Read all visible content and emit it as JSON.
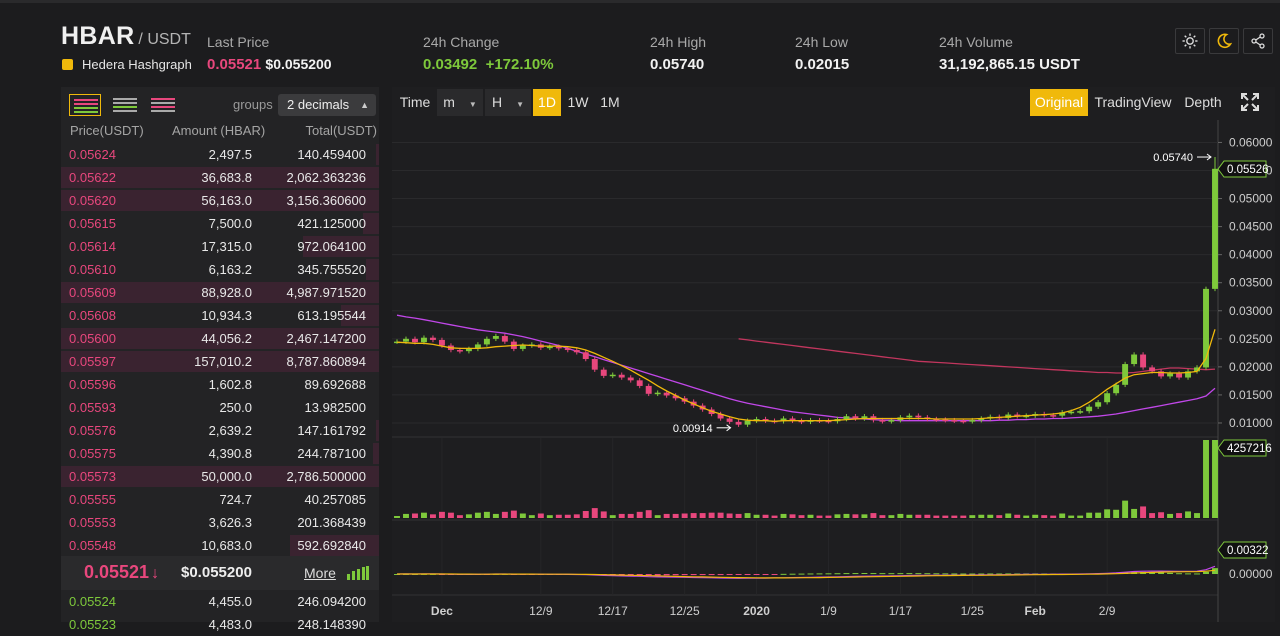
{
  "header": {
    "symbol": "HBAR",
    "quote": "/ USDT",
    "name": "Hedera Hashgraph",
    "last_price_label": "Last Price",
    "last_price": "0.05521",
    "last_price_usd": "$0.055200",
    "change_label": "24h Change",
    "change_value": "0.03492",
    "change_percent": "+172.10%",
    "high_label": "24h High",
    "high_value": "0.05740",
    "low_label": "24h Low",
    "low_value": "0.02015",
    "volume_label": "24h Volume",
    "volume_value": "31,192,865.15 USDT",
    "icons": [
      "sun-icon",
      "moon-icon",
      "share-icon"
    ]
  },
  "orderbook": {
    "groups_label": "groups",
    "groups_value": "2 decimals",
    "headers": [
      "Price(USDT)",
      "Amount (HBAR)",
      "Total(USDT)"
    ],
    "asks": [
      {
        "price": "0.05624",
        "amount": "2,497.5",
        "total": "140.459400",
        "depth": 0.01
      },
      {
        "price": "0.05622",
        "amount": "36,683.8",
        "total": "2,062.363236",
        "depth": 1.0
      },
      {
        "price": "0.05620",
        "amount": "56,163.0",
        "total": "3,156.360600",
        "depth": 1.0
      },
      {
        "price": "0.05615",
        "amount": "7,500.0",
        "total": "421.125000",
        "depth": 0.05
      },
      {
        "price": "0.05614",
        "amount": "17,315.0",
        "total": "972.064100",
        "depth": 0.24
      },
      {
        "price": "0.05610",
        "amount": "6,163.2",
        "total": "345.755520",
        "depth": 0.04
      },
      {
        "price": "0.05609",
        "amount": "88,928.0",
        "total": "4,987.971520",
        "depth": 1.0
      },
      {
        "price": "0.05608",
        "amount": "10,934.3",
        "total": "613.195544",
        "depth": 0.12
      },
      {
        "price": "0.05600",
        "amount": "44,056.2",
        "total": "2,467.147200",
        "depth": 1.0
      },
      {
        "price": "0.05597",
        "amount": "157,010.2",
        "total": "8,787.860894",
        "depth": 1.0
      },
      {
        "price": "0.05596",
        "amount": "1,602.8",
        "total": "89.692688",
        "depth": 0.0
      },
      {
        "price": "0.05593",
        "amount": "250.0",
        "total": "13.982500",
        "depth": 0.0
      },
      {
        "price": "0.05576",
        "amount": "2,639.2",
        "total": "147.161792",
        "depth": 0.01
      },
      {
        "price": "0.05575",
        "amount": "4,390.8",
        "total": "244.787100",
        "depth": 0.02
      },
      {
        "price": "0.05573",
        "amount": "50,000.0",
        "total": "2,786.500000",
        "depth": 1.0
      },
      {
        "price": "0.05555",
        "amount": "724.7",
        "total": "40.257085",
        "depth": 0.0
      },
      {
        "price": "0.05553",
        "amount": "3,626.3",
        "total": "201.368439",
        "depth": 0.0
      },
      {
        "price": "0.05548",
        "amount": "10,683.0",
        "total": "592.692840",
        "depth": 0.28
      }
    ],
    "last_price": "0.05521",
    "last_arrow": "↓",
    "last_price_usd": "$0.055200",
    "more_label": "More",
    "bids": [
      {
        "price": "0.05524",
        "amount": "4,455.0",
        "total": "246.094200",
        "depth": 0.0
      },
      {
        "price": "0.05523",
        "amount": "4,483.0",
        "total": "248.148390",
        "depth": 0.0
      }
    ]
  },
  "toolbar": {
    "time_label": "Time",
    "minute_label": "m",
    "hour_label": "H",
    "intervals": [
      "1D",
      "1W",
      "1M"
    ],
    "active_interval": "1D",
    "views": [
      "Original",
      "TradingView",
      "Depth"
    ],
    "active_view": "Original"
  },
  "chart_data": {
    "type": "candlestick",
    "interval": "1D",
    "x_tick_labels": [
      "Dec",
      "12/9",
      "12/17",
      "12/25",
      "2020",
      "1/9",
      "1/17",
      "1/25",
      "Feb",
      "2/9"
    ],
    "price_axis": {
      "ticks": [
        "0.06000",
        "0.05500",
        "0.05000",
        "0.04500",
        "0.04000",
        "0.03500",
        "0.03000",
        "0.02500",
        "0.02000",
        "0.01500",
        "0.01000"
      ],
      "range": [
        0.0075,
        0.064
      ]
    },
    "annotations": {
      "high": "0.05740",
      "low": "0.00914",
      "last": "0.05526"
    },
    "volume_last_label": "4257216",
    "macd_last_label": "0.00322",
    "macd_zero_label": "0.00000",
    "close": [
      0.0245,
      0.025,
      0.0244,
      0.0252,
      0.0248,
      0.0238,
      0.023,
      0.0228,
      0.0232,
      0.024,
      0.025,
      0.0255,
      0.0245,
      0.0232,
      0.0238,
      0.024,
      0.0234,
      0.0236,
      0.0233,
      0.023,
      0.0226,
      0.0214,
      0.0195,
      0.0184,
      0.0186,
      0.0181,
      0.0176,
      0.0166,
      0.0152,
      0.0154,
      0.0149,
      0.0144,
      0.0138,
      0.0131,
      0.0124,
      0.0116,
      0.0108,
      0.0102,
      0.0097,
      0.0104,
      0.0107,
      0.0104,
      0.0103,
      0.0108,
      0.0104,
      0.0102,
      0.0105,
      0.0104,
      0.0103,
      0.0107,
      0.0112,
      0.0108,
      0.0112,
      0.0105,
      0.0103,
      0.0105,
      0.011,
      0.0113,
      0.011,
      0.0107,
      0.0106,
      0.0105,
      0.0104,
      0.0103,
      0.0105,
      0.0108,
      0.0111,
      0.0109,
      0.0115,
      0.0112,
      0.0113,
      0.0116,
      0.0114,
      0.0113,
      0.0119,
      0.012,
      0.0121,
      0.0129,
      0.0137,
      0.0153,
      0.0168,
      0.0205,
      0.0222,
      0.0199,
      0.0192,
      0.0183,
      0.0188,
      0.0181,
      0.0192,
      0.0199,
      0.0339,
      0.0553
    ],
    "sma_short": [
      0.0244,
      0.0243,
      0.0242,
      0.0242,
      0.024,
      0.0237,
      0.0234,
      0.0233,
      0.0233,
      0.0233,
      0.0234,
      0.0236,
      0.0237,
      0.0238,
      0.0239,
      0.0238,
      0.0237,
      0.0237,
      0.0237,
      0.0236,
      0.0234,
      0.023,
      0.0224,
      0.0217,
      0.021,
      0.0202,
      0.0194,
      0.0185,
      0.0176,
      0.0166,
      0.0157,
      0.0149,
      0.0141,
      0.0134,
      0.0127,
      0.0121,
      0.0116,
      0.0111,
      0.0107,
      0.0105,
      0.0104,
      0.0104,
      0.0103,
      0.0104,
      0.0104,
      0.0104,
      0.0104,
      0.0104,
      0.0104,
      0.0105,
      0.0106,
      0.0107,
      0.0108,
      0.0108,
      0.0108,
      0.0108,
      0.0108,
      0.0108,
      0.0108,
      0.0108,
      0.0107,
      0.0107,
      0.0107,
      0.0107,
      0.0107,
      0.0108,
      0.0109,
      0.011,
      0.0111,
      0.0112,
      0.0113,
      0.0114,
      0.0115,
      0.0116,
      0.0118,
      0.0122,
      0.0128,
      0.0137,
      0.0148,
      0.016,
      0.017,
      0.018,
      0.0186,
      0.0188,
      0.019,
      0.019,
      0.0189,
      0.0189,
      0.019,
      0.0192,
      0.0215,
      0.0267
    ],
    "sma_medium": [
      0.0292,
      0.0289,
      0.0287,
      0.0284,
      0.0281,
      0.0278,
      0.0275,
      0.0272,
      0.0269,
      0.0266,
      0.0264,
      0.0262,
      0.026,
      0.0257,
      0.0254,
      0.025,
      0.0246,
      0.0242,
      0.0238,
      0.0233,
      0.0228,
      0.0223,
      0.0218,
      0.0213,
      0.0208,
      0.0203,
      0.0198,
      0.0193,
      0.0188,
      0.0183,
      0.0178,
      0.0173,
      0.0168,
      0.0163,
      0.0158,
      0.0153,
      0.0148,
      0.0143,
      0.0139,
      0.0135,
      0.0132,
      0.0129,
      0.0126,
      0.0123,
      0.012,
      0.0118,
      0.0116,
      0.0114,
      0.0112,
      0.011,
      0.0109,
      0.0108,
      0.0107,
      0.0106,
      0.0105,
      0.0105,
      0.0104,
      0.0104,
      0.0104,
      0.0104,
      0.0104,
      0.0104,
      0.0104,
      0.0104,
      0.0104,
      0.0104,
      0.0104,
      0.0105,
      0.0105,
      0.0106,
      0.0106,
      0.0107,
      0.0107,
      0.0108,
      0.0108,
      0.0109,
      0.011,
      0.0111,
      0.0112,
      0.0114,
      0.0116,
      0.0119,
      0.0122,
      0.0125,
      0.0128,
      0.0131,
      0.0134,
      0.0137,
      0.014,
      0.0143,
      0.0148,
      0.0162
    ],
    "sma_long_start": 38,
    "sma_long": [
      0.025,
      0.0248,
      0.0246,
      0.0244,
      0.0242,
      0.024,
      0.0238,
      0.0236,
      0.0234,
      0.0232,
      0.023,
      0.0228,
      0.0226,
      0.0224,
      0.0222,
      0.022,
      0.0218,
      0.0216,
      0.0214,
      0.0212,
      0.021,
      0.0209,
      0.0208,
      0.0207,
      0.0206,
      0.0205,
      0.0204,
      0.0203,
      0.0202,
      0.0201,
      0.02,
      0.0199,
      0.0198,
      0.0197,
      0.0196,
      0.0195,
      0.0194,
      0.0193,
      0.0192,
      0.0191,
      0.019,
      0.019,
      0.0189,
      0.0189,
      0.019,
      0.0192,
      0.0194,
      0.0196,
      0.0198,
      0.0198,
      0.0197,
      0.0196,
      0.0195,
      0.0196
    ]
  },
  "colors": {
    "up": "#7ec93b",
    "down": "#e8477d",
    "ma_short": "#f0b90b",
    "ma_medium": "#c147e9",
    "ma_long": "#c2365e",
    "accent": "#f0b90b"
  }
}
